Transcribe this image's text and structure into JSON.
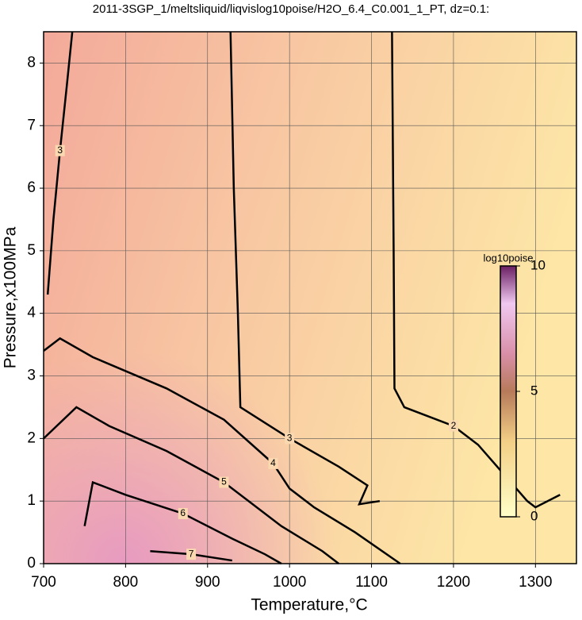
{
  "chart_data": {
    "type": "contour",
    "title": "2011-3SGP_1/meltsliquid/liqvislog10poise/H2O_6.4_C0.001_1_PT, dz=0.1:",
    "x_label": "Temperature,°C",
    "y_label": "Pressure,x100MPa",
    "xlim": [
      700,
      1350
    ],
    "ylim": [
      0,
      8.5
    ],
    "xticks": [
      700,
      800,
      900,
      1000,
      1100,
      1200,
      1300
    ],
    "yticks": [
      0,
      1,
      2,
      3,
      4,
      5,
      6,
      7,
      8
    ],
    "grid": true,
    "contours": [
      {
        "level": 3,
        "x": [
          705,
          712,
          720,
          728,
          735
        ],
        "y": [
          4.3,
          5.5,
          6.6,
          7.6,
          8.5
        ]
      },
      {
        "level": 3,
        "x": [
          928,
          932,
          937,
          940,
          1000,
          1060,
          1095,
          1085,
          1110
        ],
        "y": [
          8.5,
          6,
          4,
          2.5,
          2.0,
          1.55,
          1.25,
          0.95,
          1.0
        ]
      },
      {
        "level": 2,
        "x": [
          1125,
          1127,
          1128,
          1140,
          1200,
          1230,
          1290,
          1300,
          1330
        ],
        "y": [
          8.5,
          5,
          2.8,
          2.5,
          2.2,
          1.9,
          1.0,
          0.9,
          1.1
        ]
      },
      {
        "level": 4,
        "x": [
          700,
          720,
          760,
          850,
          920,
          980,
          1000,
          1030,
          1080,
          1135
        ],
        "y": [
          3.4,
          3.6,
          3.3,
          2.8,
          2.3,
          1.6,
          1.2,
          0.9,
          0.5,
          0
        ]
      },
      {
        "level": 5,
        "x": [
          700,
          740,
          780,
          850,
          920,
          990,
          1040,
          1060
        ],
        "y": [
          2.0,
          2.5,
          2.2,
          1.8,
          1.3,
          0.6,
          0.2,
          0
        ]
      },
      {
        "level": 6,
        "x": [
          750,
          760,
          800,
          870,
          930,
          970,
          990
        ],
        "y": [
          0.6,
          1.3,
          1.1,
          0.8,
          0.4,
          0.15,
          0
        ]
      },
      {
        "level": 7,
        "x": [
          830,
          880,
          930
        ],
        "y": [
          0.2,
          0.15,
          0.05
        ]
      }
    ],
    "colorbar": {
      "label": "log10poise",
      "clim": [
        0,
        10
      ],
      "ticks": [
        0,
        5,
        10
      ]
    }
  }
}
